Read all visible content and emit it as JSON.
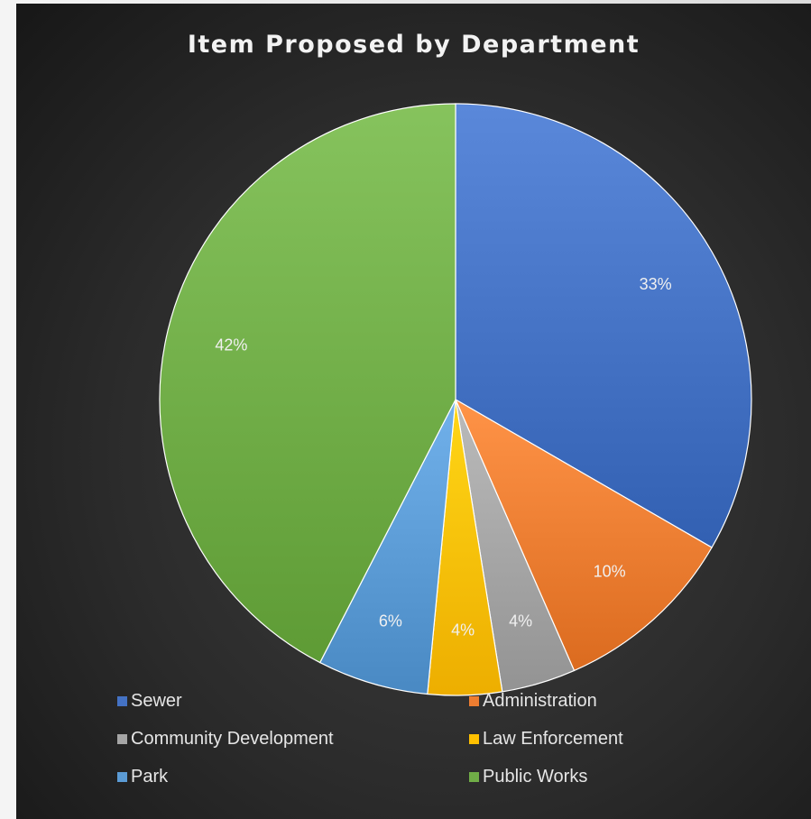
{
  "chart_data": {
    "type": "pie",
    "title": "Item Proposed by Department",
    "categories": [
      "Sewer",
      "Administration",
      "Community Development",
      "Law Enforcement",
      "Park",
      "Public Works"
    ],
    "values": [
      33,
      10,
      4,
      4,
      6,
      42
    ],
    "labels": [
      "33%",
      "10%",
      "4%",
      "4%",
      "6%",
      "42%"
    ],
    "colors": [
      "#4472c4",
      "#ed7d31",
      "#a5a5a5",
      "#ffc000",
      "#5b9bd5",
      "#70ad47"
    ],
    "legend_position": "bottom"
  }
}
